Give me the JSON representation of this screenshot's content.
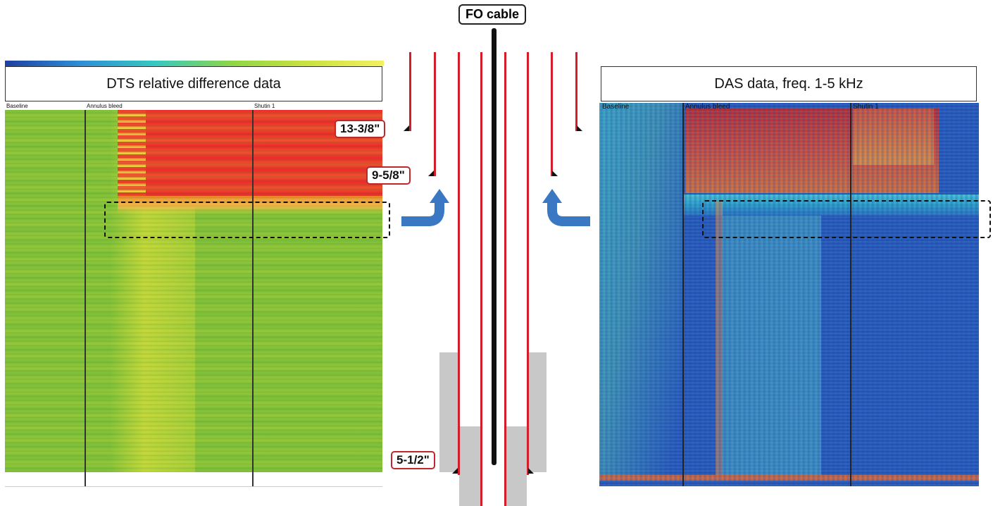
{
  "fo_cable_label": "FO cable",
  "casing_labels": {
    "c1": "13-3/8\"",
    "c2": "9-5/8\"",
    "c3": "5-1/2\""
  },
  "dts_panel": {
    "title": "DTS relative difference data",
    "periods": [
      "Baseline",
      "Annulus bleed",
      "Shutin 1"
    ]
  },
  "das_panel": {
    "title": "DAS data, freq. 1-5 kHz",
    "periods": [
      "Baseline",
      "Annulus bleed",
      "Shutin 1"
    ]
  },
  "colors": {
    "casing": "#d11e2a",
    "arrow": "#3b78c4",
    "cement": "#c8c8c8",
    "heat_red": "#ec2b2b",
    "heat_green": "#7cbf3a",
    "heat_blue": "#2450b8"
  }
}
